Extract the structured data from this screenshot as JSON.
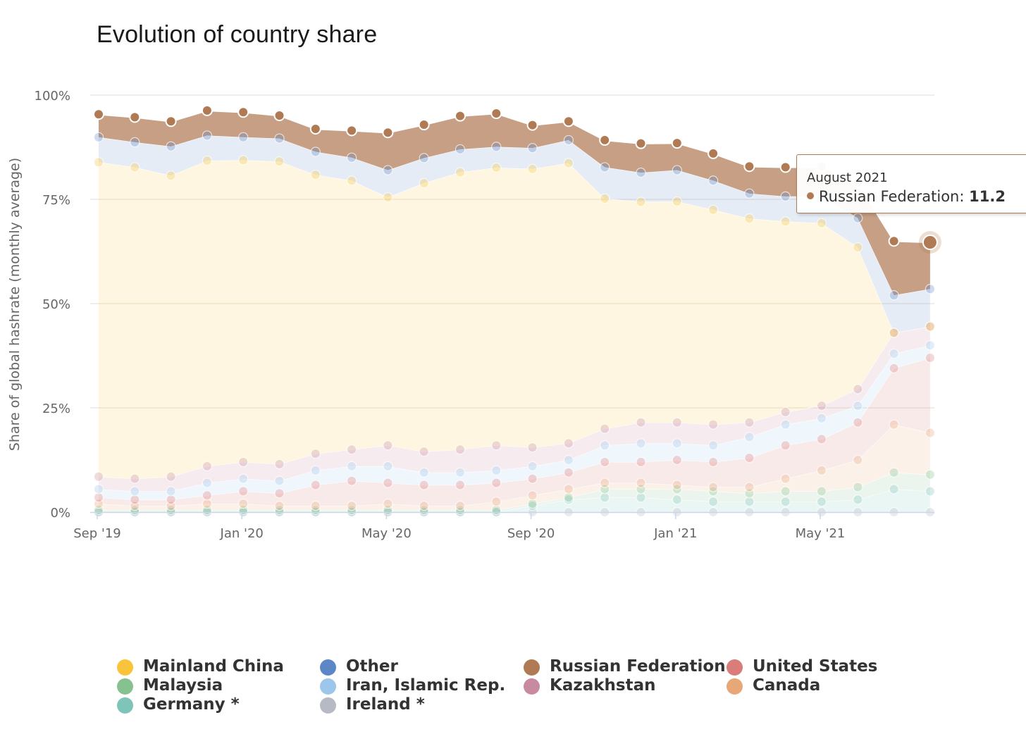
{
  "chart_data": {
    "type": "area",
    "stacked": true,
    "title": "Evolution of country share",
    "ylabel": "Share of global hashrate (monthly average)",
    "xlabel": "",
    "ylim": [
      0,
      100
    ],
    "y_ticks": [
      "0%",
      "25%",
      "50%",
      "75%",
      "100%"
    ],
    "x_tick_labels": [
      "Sep '19",
      "Jan '20",
      "May '20",
      "Sep '20",
      "Jan '21",
      "May '21"
    ],
    "x": [
      "2019-09",
      "2019-10",
      "2019-11",
      "2019-12",
      "2020-01",
      "2020-02",
      "2020-03",
      "2020-04",
      "2020-05",
      "2020-06",
      "2020-07",
      "2020-08",
      "2020-09",
      "2020-10",
      "2020-11",
      "2020-12",
      "2021-01",
      "2021-02",
      "2021-03",
      "2021-04",
      "2021-05",
      "2021-06",
      "2021-07",
      "2021-08"
    ],
    "legend_position": "bottom",
    "series": [
      {
        "name": "Ireland *",
        "color": "#b6bac5",
        "values": [
          0,
          0,
          0,
          0,
          0,
          0,
          0,
          0,
          0,
          0,
          0,
          0,
          0,
          0,
          0,
          0,
          0,
          0,
          0,
          0,
          0,
          0,
          0,
          0
        ]
      },
      {
        "name": "Germany *",
        "color": "#7fc4b8",
        "values": [
          0,
          0,
          0,
          0,
          0,
          0,
          0,
          0,
          0,
          0,
          0,
          0,
          1.5,
          3,
          3.5,
          3.5,
          3,
          2.5,
          2.5,
          2.5,
          2.5,
          3,
          5.5,
          5
        ]
      },
      {
        "name": "Malaysia",
        "color": "#86c290",
        "values": [
          0.5,
          0.5,
          0.5,
          0.5,
          0.5,
          0.5,
          0.5,
          0.5,
          0.5,
          0.5,
          0.5,
          0.5,
          0.5,
          0.5,
          2,
          2,
          2.5,
          2.5,
          2,
          2.5,
          2.5,
          3,
          4,
          4
        ]
      },
      {
        "name": "Canada",
        "color": "#e8a777",
        "values": [
          1.5,
          1,
          1,
          1.5,
          1.5,
          1,
          1,
          1,
          1.5,
          1,
          1,
          2,
          2,
          2,
          1.5,
          1.5,
          1,
          1,
          1.5,
          3,
          5,
          6.5,
          11.5,
          10
        ]
      },
      {
        "name": "United States",
        "color": "#d97c7a",
        "values": [
          1.5,
          1.5,
          1.5,
          2,
          3,
          3,
          5,
          6,
          5,
          5,
          5,
          4.5,
          4,
          4,
          5,
          5,
          6,
          6,
          7,
          8,
          7.5,
          9,
          13.5,
          18
        ]
      },
      {
        "name": "Iran, Islamic Rep.",
        "color": "#9cc6ea",
        "values": [
          2,
          2,
          2,
          3,
          3,
          3,
          3.5,
          3.5,
          4,
          3,
          3,
          3,
          3,
          3,
          4,
          4.5,
          4,
          4,
          5,
          5,
          5,
          4,
          3.5,
          3
        ]
      },
      {
        "name": "Kazakhstan",
        "color": "#c88aa0",
        "values": [
          3,
          3,
          3.5,
          4,
          4,
          4,
          4,
          4,
          5,
          5,
          5.5,
          6,
          4.5,
          4,
          4,
          5,
          5,
          5,
          3.5,
          3,
          3,
          4,
          5,
          4.5
        ]
      },
      {
        "name": "Mainland China",
        "color": "#f9c43c",
        "values": [
          75.4,
          74.7,
          72.2,
          73.3,
          72.4,
          72.6,
          66.9,
          64.5,
          59.5,
          64.4,
          66.5,
          66.6,
          66.8,
          67.2,
          55.2,
          52.9,
          53,
          51.5,
          48.9,
          45.7,
          43.8,
          34,
          0,
          0
        ]
      },
      {
        "name": "Other",
        "color": "#5c86c6",
        "values": [
          6,
          6,
          7,
          6,
          5.5,
          5.5,
          5.5,
          5.5,
          6.5,
          6,
          5.5,
          5,
          5,
          5.5,
          7.5,
          7,
          7.5,
          7,
          6,
          6,
          6.5,
          7,
          9,
          9
        ]
      },
      {
        "name": "Russian Federation",
        "color": "#b07a54",
        "values": [
          5.5,
          6,
          6,
          6,
          6,
          5.5,
          5.5,
          6.5,
          9,
          8,
          8,
          8,
          5.5,
          4.5,
          6.5,
          7,
          6.5,
          6.5,
          6.5,
          7,
          7,
          8.5,
          13,
          11.2
        ]
      }
    ],
    "tooltip": {
      "date": "August 2021",
      "series": "Russian Federation",
      "value": "11.2"
    }
  },
  "legend": [
    {
      "label": "Mainland China",
      "color": "#f9c43c"
    },
    {
      "label": "Malaysia",
      "color": "#86c290"
    },
    {
      "label": "Germany *",
      "color": "#7fc4b8"
    },
    {
      "label": "Other",
      "color": "#5c86c6"
    },
    {
      "label": "Iran, Islamic Rep.",
      "color": "#9cc6ea"
    },
    {
      "label": "Ireland *",
      "color": "#b6bac5"
    },
    {
      "label": "Russian Federation",
      "color": "#b07a54"
    },
    {
      "label": "Kazakhstan",
      "color": "#c88aa0"
    },
    {
      "label": "United States",
      "color": "#d97c7a"
    },
    {
      "label": "Canada",
      "color": "#e8a777"
    }
  ]
}
